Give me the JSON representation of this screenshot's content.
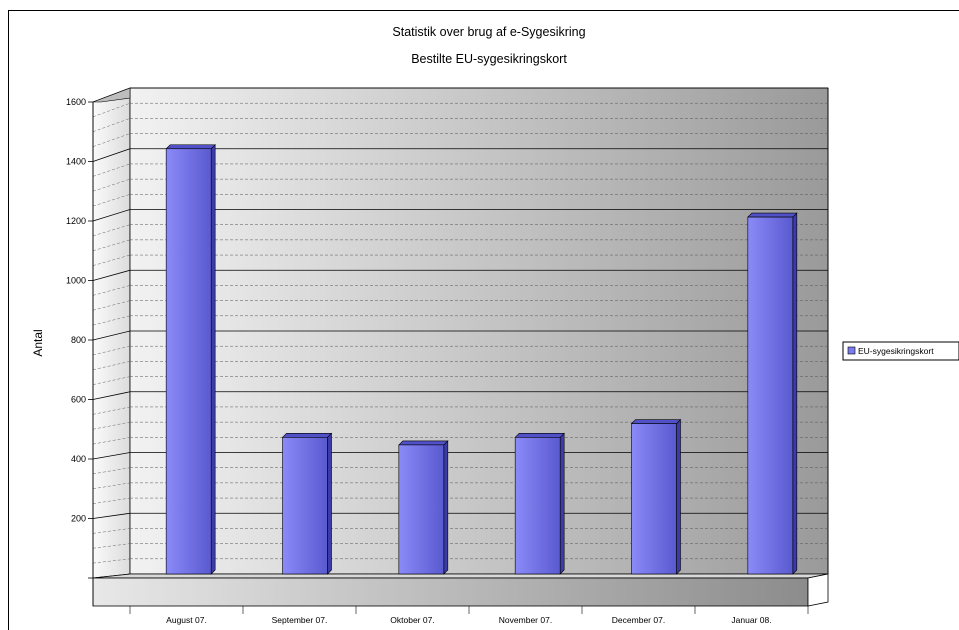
{
  "chart_data": {
    "type": "bar",
    "title": "Statistik over brug af e-Sygesikring",
    "subtitle": "Bestilte EU-sygesikringskort",
    "ylabel": "Antal",
    "xlabel": "",
    "ylim": [
      0,
      1600
    ],
    "yticks": [
      200,
      400,
      600,
      800,
      1000,
      1200,
      1400,
      1600
    ],
    "categories": [
      "August 07.",
      "September 07.",
      "Oktober 07.",
      "November 07.",
      "December 07.",
      "Januar 08."
    ],
    "series": [
      {
        "name": "EU-sygesikringskort",
        "values": [
          1400,
          450,
          425,
          450,
          495,
          1175
        ],
        "color": "#7b7bf0"
      }
    ],
    "grid": true,
    "legend_position": "right"
  }
}
